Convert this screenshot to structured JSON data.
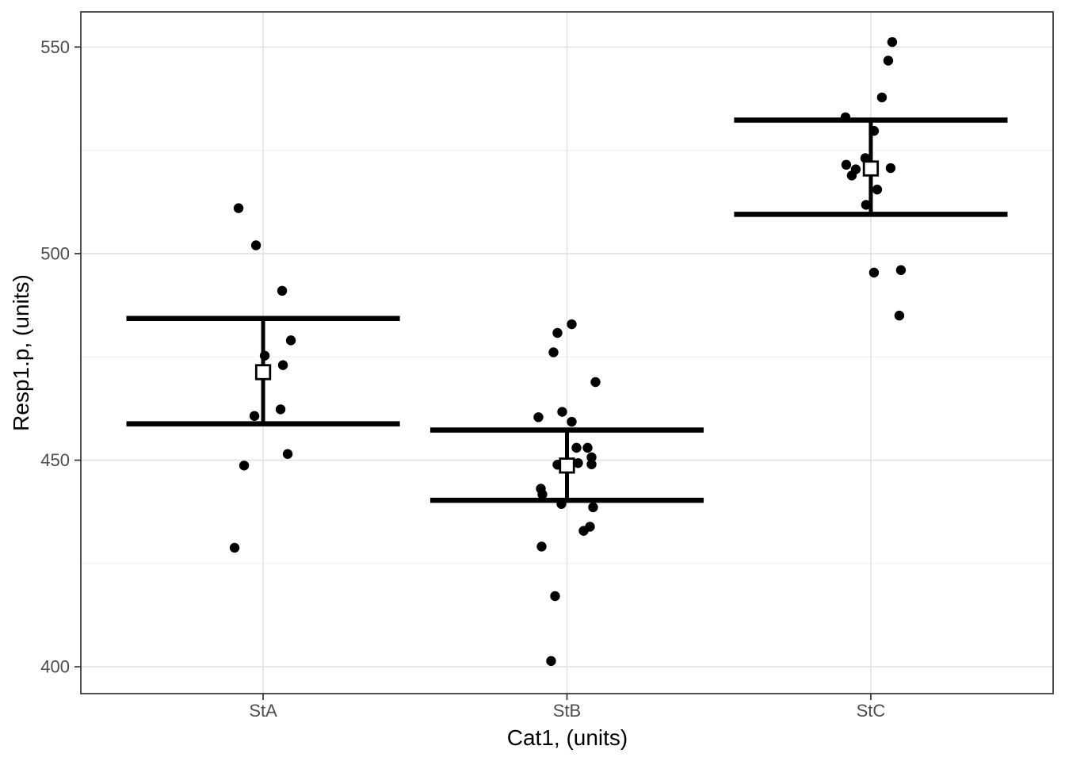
{
  "chart_data": {
    "type": "scatter",
    "subtype": "jittered-points-with-mean-errorbar-crossbars",
    "title": "",
    "xlabel": "Cat1, (units)",
    "ylabel": "Resp1.p, (units)",
    "categories": [
      "StA",
      "StB",
      "StC"
    ],
    "ylim": [
      393.5,
      558.5
    ],
    "yticks_major": [
      400,
      450,
      500,
      550
    ],
    "ytick_labels": [
      "400",
      "450",
      "500",
      "550"
    ],
    "yticks_minor": [
      425,
      475,
      525
    ],
    "grid": true,
    "legend": "none",
    "errorbar_width_fraction": 0.9,
    "series": [
      {
        "name": "StA",
        "summary": {
          "mean": 471.3,
          "upper": 484.3,
          "lower": 458.8
        },
        "points": [
          {
            "dx": -31,
            "value": 511
          },
          {
            "dx": -9,
            "value": 502
          },
          {
            "dx": 24,
            "value": 491
          },
          {
            "dx": 35,
            "value": 479
          },
          {
            "dx": 2,
            "value": 475.3
          },
          {
            "dx": 25,
            "value": 473
          },
          {
            "dx": 22,
            "value": 462.3
          },
          {
            "dx": -11,
            "value": 460.7
          },
          {
            "dx": 31,
            "value": 451.5
          },
          {
            "dx": -24,
            "value": 448.7
          },
          {
            "dx": -36,
            "value": 428.8
          }
        ]
      },
      {
        "name": "StB",
        "summary": {
          "mean": 448.7,
          "upper": 457.3,
          "lower": 440.3
        },
        "points": [
          {
            "dx": 6,
            "value": 482.9
          },
          {
            "dx": -12,
            "value": 480.8
          },
          {
            "dx": -17,
            "value": 476.1
          },
          {
            "dx": 36,
            "value": 468.9
          },
          {
            "dx": -6,
            "value": 461.7
          },
          {
            "dx": -36,
            "value": 460.4
          },
          {
            "dx": 6,
            "value": 459.3
          },
          {
            "dx": 12,
            "value": 453.0
          },
          {
            "dx": 26,
            "value": 453.0
          },
          {
            "dx": 31,
            "value": 450.7
          },
          {
            "dx": 14,
            "value": 449.3
          },
          {
            "dx": 31,
            "value": 449.0
          },
          {
            "dx": -12,
            "value": 448.9
          },
          {
            "dx": -33,
            "value": 443.1
          },
          {
            "dx": -31,
            "value": 441.7
          },
          {
            "dx": -7,
            "value": 439.4
          },
          {
            "dx": 33,
            "value": 438.6
          },
          {
            "dx": 29,
            "value": 433.9
          },
          {
            "dx": 21,
            "value": 432.9
          },
          {
            "dx": -32,
            "value": 429.1
          },
          {
            "dx": -15,
            "value": 417.1
          },
          {
            "dx": -20,
            "value": 401.4
          }
        ]
      },
      {
        "name": "StC",
        "summary": {
          "mean": 520.6,
          "upper": 532.3,
          "lower": 509.5
        },
        "points": [
          {
            "dx": 27,
            "value": 551.2
          },
          {
            "dx": 22,
            "value": 546.7
          },
          {
            "dx": 14,
            "value": 537.8
          },
          {
            "dx": -32,
            "value": 533.0
          },
          {
            "dx": 4,
            "value": 529.7
          },
          {
            "dx": -7,
            "value": 523.1
          },
          {
            "dx": -31,
            "value": 521.5
          },
          {
            "dx": 25,
            "value": 520.7
          },
          {
            "dx": -19,
            "value": 520.4
          },
          {
            "dx": -24,
            "value": 518.9
          },
          {
            "dx": 8,
            "value": 515.5
          },
          {
            "dx": -6,
            "value": 511.8
          },
          {
            "dx": 38,
            "value": 496.0
          },
          {
            "dx": 4,
            "value": 495.4
          },
          {
            "dx": 36,
            "value": 485.0
          }
        ]
      }
    ]
  },
  "style": {
    "background": "#ffffff",
    "panel_background": "#ffffff",
    "panel_border": "#333333",
    "grid_major": "#e4e4e4",
    "grid_minor": "#efefef",
    "tick_color": "#333333",
    "tick_text_color": "#4d4d4d",
    "axis_title_color": "#000000",
    "point_color": "#000000",
    "errorbar_color": "#000000",
    "mean_marker_fill": "#ffffff",
    "mean_marker_stroke": "#000000"
  }
}
